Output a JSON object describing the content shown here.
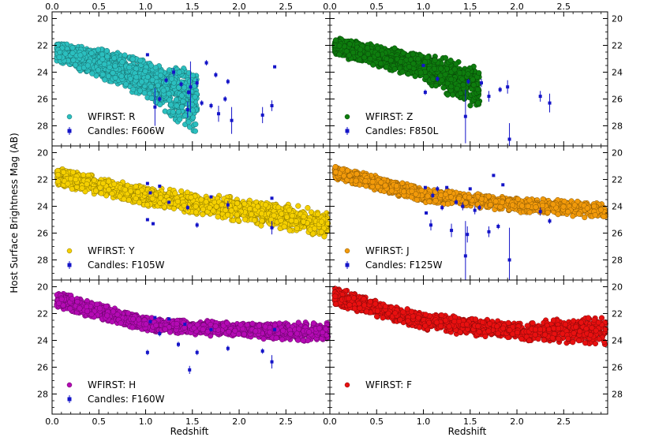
{
  "figure": {
    "ylabel": "Host Surface Brightness Mag (AB)",
    "xlabel": "Redshift"
  },
  "chart_data": {
    "type": "scatter",
    "shared_axes": {
      "xlim": [
        0.0,
        2.97
      ],
      "ylim_inverted": [
        29.5,
        19.5
      ],
      "xticks": [
        0.0,
        0.5,
        1.0,
        1.5,
        2.0,
        2.5
      ],
      "xtick_labels": [
        "0.0",
        "0.5",
        "1.0",
        "1.5",
        "2.0",
        "2.5"
      ],
      "yticks": [
        20,
        22,
        24,
        26,
        28
      ],
      "ytick_labels": [
        "20",
        "22",
        "24",
        "26",
        "28"
      ],
      "xlabel": "Redshift",
      "ylabel": "Host Surface Brightness Mag (AB)",
      "grid": false
    },
    "panels": [
      {
        "band": "R",
        "legend": [
          "WFIRST: R",
          "Candles: F606W"
        ],
        "colors": {
          "wfirst": "#2bbfbf",
          "candles": "#1414c8"
        },
        "wfirst_curve": {
          "z_max": 1.55,
          "top": [
            [
              0.05,
              21.8
            ],
            [
              0.5,
              22.1
            ],
            [
              1.0,
              22.9
            ],
            [
              1.5,
              23.7
            ]
          ],
          "bottom": [
            [
              0.05,
              23.2
            ],
            [
              0.5,
              24.5
            ],
            [
              1.0,
              26.0
            ],
            [
              1.5,
              28.6
            ]
          ]
        },
        "candles": [
          {
            "z": 1.02,
            "mag": 22.7,
            "err": 0.1
          },
          {
            "z": 1.1,
            "mag": 26.6,
            "err": 1.4
          },
          {
            "z": 1.15,
            "mag": 26.0,
            "err": 0.2
          },
          {
            "z": 1.22,
            "mag": 24.6,
            "err": 0.2
          },
          {
            "z": 1.3,
            "mag": 24.0,
            "err": 0.3
          },
          {
            "z": 1.38,
            "mag": 24.9,
            "err": 0.2
          },
          {
            "z": 1.45,
            "mag": 26.8,
            "err": 0.6
          },
          {
            "z": 1.46,
            "mag": 25.5,
            "err": 0.2
          },
          {
            "z": 1.48,
            "mag": 25.1,
            "err": 1.9
          },
          {
            "z": 1.55,
            "mag": 24.8,
            "err": 0.3
          },
          {
            "z": 1.6,
            "mag": 26.3,
            "err": 0.2
          },
          {
            "z": 1.65,
            "mag": 23.3,
            "err": 0.2
          },
          {
            "z": 1.7,
            "mag": 26.5,
            "err": 0.2
          },
          {
            "z": 1.75,
            "mag": 24.2,
            "err": 0.2
          },
          {
            "z": 1.78,
            "mag": 27.1,
            "err": 0.6
          },
          {
            "z": 1.85,
            "mag": 26.0,
            "err": 0.2
          },
          {
            "z": 1.88,
            "mag": 24.7,
            "err": 0.2
          },
          {
            "z": 1.92,
            "mag": 27.6,
            "err": 1.0
          },
          {
            "z": 2.25,
            "mag": 27.2,
            "err": 0.6
          },
          {
            "z": 2.35,
            "mag": 26.5,
            "err": 0.4
          },
          {
            "z": 2.38,
            "mag": 23.6,
            "err": 0.1
          }
        ]
      },
      {
        "band": "Z",
        "legend": [
          "WFIRST: Z",
          "Candles: F850L"
        ],
        "colors": {
          "wfirst": "#0e7d0e",
          "candles": "#1414c8"
        },
        "wfirst_curve": {
          "z_max": 1.6,
          "top": [
            [
              0.05,
              21.4
            ],
            [
              0.5,
              21.9
            ],
            [
              1.0,
              22.6
            ],
            [
              1.5,
              23.2
            ]
          ],
          "bottom": [
            [
              0.05,
              22.8
            ],
            [
              0.5,
              23.6
            ],
            [
              1.0,
              24.6
            ],
            [
              1.5,
              26.8
            ]
          ]
        },
        "candles": [
          {
            "z": 1.0,
            "mag": 23.5,
            "err": 0.1
          },
          {
            "z": 1.02,
            "mag": 25.5,
            "err": 0.2
          },
          {
            "z": 1.15,
            "mag": 24.5,
            "err": 0.2
          },
          {
            "z": 1.45,
            "mag": 27.3,
            "err": 2.0
          },
          {
            "z": 1.48,
            "mag": 24.7,
            "err": 0.2
          },
          {
            "z": 1.62,
            "mag": 24.8,
            "err": 0.3
          },
          {
            "z": 1.7,
            "mag": 25.8,
            "err": 0.4
          },
          {
            "z": 1.82,
            "mag": 25.3,
            "err": 0.2
          },
          {
            "z": 1.9,
            "mag": 25.1,
            "err": 0.5
          },
          {
            "z": 1.92,
            "mag": 29.0,
            "err": 1.2
          },
          {
            "z": 2.25,
            "mag": 25.8,
            "err": 0.4
          },
          {
            "z": 2.35,
            "mag": 26.3,
            "err": 0.7
          }
        ]
      },
      {
        "band": "Y",
        "legend": [
          "WFIRST: Y",
          "Candles: F105W"
        ],
        "colors": {
          "wfirst": "#f5d000",
          "candles": "#1414c8"
        },
        "wfirst_curve": {
          "z_max": 2.95,
          "top": [
            [
              0.05,
              21.0
            ],
            [
              1.0,
              22.5
            ],
            [
              2.0,
              23.3
            ],
            [
              2.95,
              24.2
            ]
          ],
          "bottom": [
            [
              0.05,
              22.5
            ],
            [
              1.0,
              24.0
            ],
            [
              2.0,
              25.2
            ],
            [
              2.95,
              26.5
            ]
          ]
        },
        "candles": [
          {
            "z": 1.02,
            "mag": 22.3,
            "err": 0.1
          },
          {
            "z": 1.02,
            "mag": 25.0,
            "err": 0.1
          },
          {
            "z": 1.05,
            "mag": 23.0,
            "err": 0.1
          },
          {
            "z": 1.08,
            "mag": 25.3,
            "err": 0.1
          },
          {
            "z": 1.15,
            "mag": 22.5,
            "err": 0.1
          },
          {
            "z": 1.25,
            "mag": 23.7,
            "err": 0.1
          },
          {
            "z": 1.45,
            "mag": 24.1,
            "err": 0.2
          },
          {
            "z": 1.55,
            "mag": 25.4,
            "err": 0.2
          },
          {
            "z": 1.7,
            "mag": 23.3,
            "err": 0.1
          },
          {
            "z": 1.88,
            "mag": 23.9,
            "err": 0.3
          },
          {
            "z": 2.35,
            "mag": 23.4,
            "err": 0.1
          },
          {
            "z": 2.35,
            "mag": 25.6,
            "err": 0.5
          }
        ]
      },
      {
        "band": "J",
        "legend": [
          "WFIRST: J",
          "Candles: F125W"
        ],
        "colors": {
          "wfirst": "#f29a0a",
          "candles": "#1414c8"
        },
        "wfirst_curve": {
          "z_max": 2.95,
          "top": [
            [
              0.05,
              20.9
            ],
            [
              1.0,
              22.6
            ],
            [
              2.0,
              23.3
            ],
            [
              2.95,
              23.7
            ]
          ],
          "bottom": [
            [
              0.05,
              22.0
            ],
            [
              1.0,
              23.8
            ],
            [
              2.0,
              24.5
            ],
            [
              2.95,
              25.0
            ]
          ]
        },
        "candles": [
          {
            "z": 1.02,
            "mag": 22.6,
            "err": 0.1
          },
          {
            "z": 1.03,
            "mag": 24.5,
            "err": 0.1
          },
          {
            "z": 1.08,
            "mag": 25.4,
            "err": 0.4
          },
          {
            "z": 1.1,
            "mag": 23.2,
            "err": 0.2
          },
          {
            "z": 1.15,
            "mag": 22.7,
            "err": 0.2
          },
          {
            "z": 1.2,
            "mag": 24.1,
            "err": 0.2
          },
          {
            "z": 1.25,
            "mag": 22.6,
            "err": 0.1
          },
          {
            "z": 1.3,
            "mag": 25.8,
            "err": 0.5
          },
          {
            "z": 1.35,
            "mag": 23.7,
            "err": 0.2
          },
          {
            "z": 1.42,
            "mag": 24.0,
            "err": 0.3
          },
          {
            "z": 1.45,
            "mag": 27.7,
            "err": 2.6
          },
          {
            "z": 1.47,
            "mag": 26.1,
            "err": 0.6
          },
          {
            "z": 1.5,
            "mag": 22.7,
            "err": 0.1
          },
          {
            "z": 1.55,
            "mag": 24.3,
            "err": 0.3
          },
          {
            "z": 1.6,
            "mag": 24.1,
            "err": 0.2
          },
          {
            "z": 1.7,
            "mag": 25.9,
            "err": 0.4
          },
          {
            "z": 1.75,
            "mag": 21.7,
            "err": 0.1
          },
          {
            "z": 1.8,
            "mag": 25.5,
            "err": 0.2
          },
          {
            "z": 1.85,
            "mag": 22.4,
            "err": 0.1
          },
          {
            "z": 1.92,
            "mag": 28.0,
            "err": 2.4
          },
          {
            "z": 2.25,
            "mag": 24.4,
            "err": 0.3
          },
          {
            "z": 2.35,
            "mag": 25.1,
            "err": 0.2
          }
        ]
      },
      {
        "band": "H",
        "legend": [
          "WFIRST: H",
          "Candles: F160W"
        ],
        "colors": {
          "wfirst": "#b40ab4",
          "candles": "#1414c8"
        },
        "wfirst_curve": {
          "z_max": 2.95,
          "top": [
            [
              0.05,
              20.3
            ],
            [
              1.0,
              22.2
            ],
            [
              2.0,
              22.7
            ],
            [
              2.95,
              22.5
            ]
          ],
          "bottom": [
            [
              0.05,
              21.7
            ],
            [
              1.0,
              23.4
            ],
            [
              2.0,
              23.8
            ],
            [
              2.95,
              24.3
            ]
          ]
        },
        "candles": [
          {
            "z": 1.02,
            "mag": 24.9,
            "err": 0.2
          },
          {
            "z": 1.05,
            "mag": 22.6,
            "err": 0.1
          },
          {
            "z": 1.1,
            "mag": 22.3,
            "err": 0.1
          },
          {
            "z": 1.15,
            "mag": 23.5,
            "err": 0.2
          },
          {
            "z": 1.25,
            "mag": 22.4,
            "err": 0.1
          },
          {
            "z": 1.35,
            "mag": 24.3,
            "err": 0.2
          },
          {
            "z": 1.42,
            "mag": 22.8,
            "err": 0.1
          },
          {
            "z": 1.47,
            "mag": 26.2,
            "err": 0.3
          },
          {
            "z": 1.55,
            "mag": 24.9,
            "err": 0.2
          },
          {
            "z": 1.7,
            "mag": 23.2,
            "err": 0.1
          },
          {
            "z": 1.88,
            "mag": 24.6,
            "err": 0.2
          },
          {
            "z": 2.25,
            "mag": 24.8,
            "err": 0.2
          },
          {
            "z": 2.35,
            "mag": 25.6,
            "err": 0.5
          },
          {
            "z": 2.38,
            "mag": 23.2,
            "err": 0.1
          }
        ]
      },
      {
        "band": "F",
        "legend": [
          "WFIRST: F"
        ],
        "colors": {
          "wfirst": "#e81010"
        },
        "wfirst_curve": {
          "z_max": 2.95,
          "top": [
            [
              0.05,
              20.0
            ],
            [
              1.0,
              21.9
            ],
            [
              2.0,
              22.6
            ],
            [
              2.95,
              22.0
            ]
          ],
          "bottom": [
            [
              0.05,
              21.4
            ],
            [
              1.0,
              23.3
            ],
            [
              2.0,
              24.0
            ],
            [
              2.95,
              24.6
            ]
          ]
        },
        "candles": []
      }
    ]
  }
}
